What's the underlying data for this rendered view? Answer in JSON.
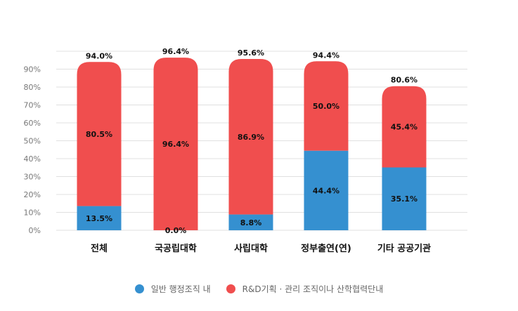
{
  "chart_data": {
    "type": "bar",
    "stacked": true,
    "categories": [
      "전체",
      "국공립대학",
      "사립대학",
      "정부출연(연)",
      "기타 공공기관"
    ],
    "series": [
      {
        "name": "일반 행정조직 내",
        "color": "#3590d0",
        "values": [
          13.5,
          0.0,
          8.8,
          44.4,
          35.1
        ]
      },
      {
        "name": "R&D기획 · 관리 조직이나 산학협력단내",
        "color": "#f04e4e",
        "values": [
          80.5,
          96.4,
          86.9,
          50.0,
          45.4
        ]
      }
    ],
    "totals": [
      94.0,
      96.4,
      95.6,
      94.4,
      80.6
    ],
    "value_labels": {
      "series0": [
        "13.5%",
        "0.0%",
        "8.8%",
        "44.4%",
        "35.1%"
      ],
      "series1": [
        "80.5%",
        "96.4%",
        "86.9%",
        "50.0%",
        "45.4%"
      ],
      "totals": [
        "94.0%",
        "96.4%",
        "95.6%",
        "94.4%",
        "80.6%"
      ]
    },
    "yticks": [
      "0%",
      "10%",
      "20%",
      "30%",
      "40%",
      "50%",
      "60%",
      "70%",
      "80%",
      "90%"
    ],
    "ylim": [
      0,
      100
    ],
    "grid": true,
    "legend": "bottom"
  }
}
